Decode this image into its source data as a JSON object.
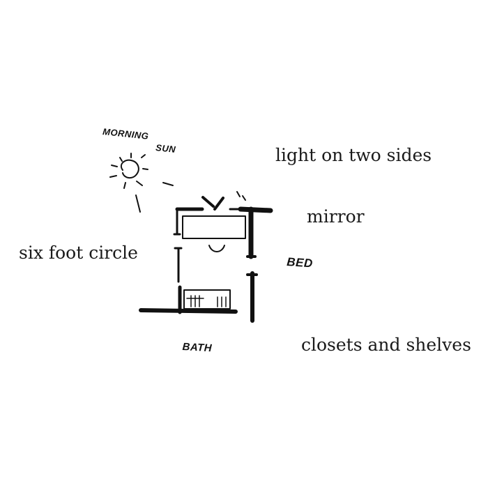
{
  "labels": {
    "light": "light on two sides",
    "mirror": "mirror",
    "six_foot_circle": "six foot circle",
    "closets": "closets and shelves"
  },
  "sketch_labels": {
    "morning": "MORNING",
    "sun": "SUN",
    "bed": "BED",
    "bath": "BATH"
  },
  "colors": {
    "ink": "#111111",
    "background": "#ffffff"
  }
}
